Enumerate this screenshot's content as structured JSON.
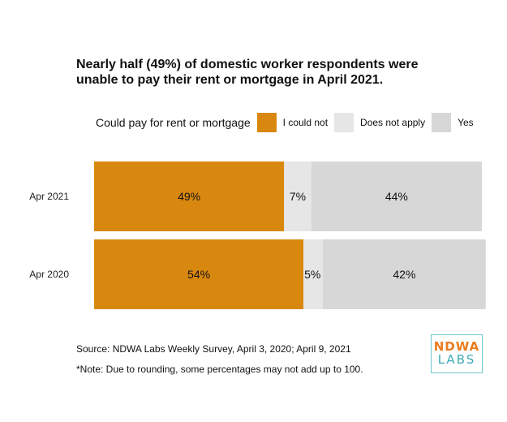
{
  "chart_data": {
    "type": "bar",
    "orientation": "horizontal",
    "stacked": true,
    "title_lines": [
      "Nearly half (49%) of domestic worker respondents were",
      "unable to pay their rent or mortgage in April 2021."
    ],
    "legend_title": "Could pay for rent or mortgage",
    "legend_position": "top",
    "categories": [
      "Apr 2021",
      "Apr 2020"
    ],
    "series": [
      {
        "name": "I could not",
        "color": "#d9880f",
        "values": [
          49,
          54
        ],
        "labels": [
          "49%",
          "54%"
        ]
      },
      {
        "name": "Does not apply",
        "color": "#e6e6e6",
        "values": [
          7,
          5
        ],
        "labels": [
          "7%",
          "5%"
        ]
      },
      {
        "name": "Yes",
        "color": "#d7d7d7",
        "values": [
          44,
          42
        ],
        "labels": [
          "44%",
          "42%"
        ]
      }
    ],
    "xlim": [
      0,
      100
    ],
    "grid": false
  },
  "footer": {
    "source": "Source: NDWA Labs Weekly Survey, April 3, 2020; April 9, 2021",
    "note": "*Note: Due to rounding, some percentages may not add up to 100."
  },
  "logo": {
    "line1": "NDWA",
    "line2": "LABS"
  }
}
